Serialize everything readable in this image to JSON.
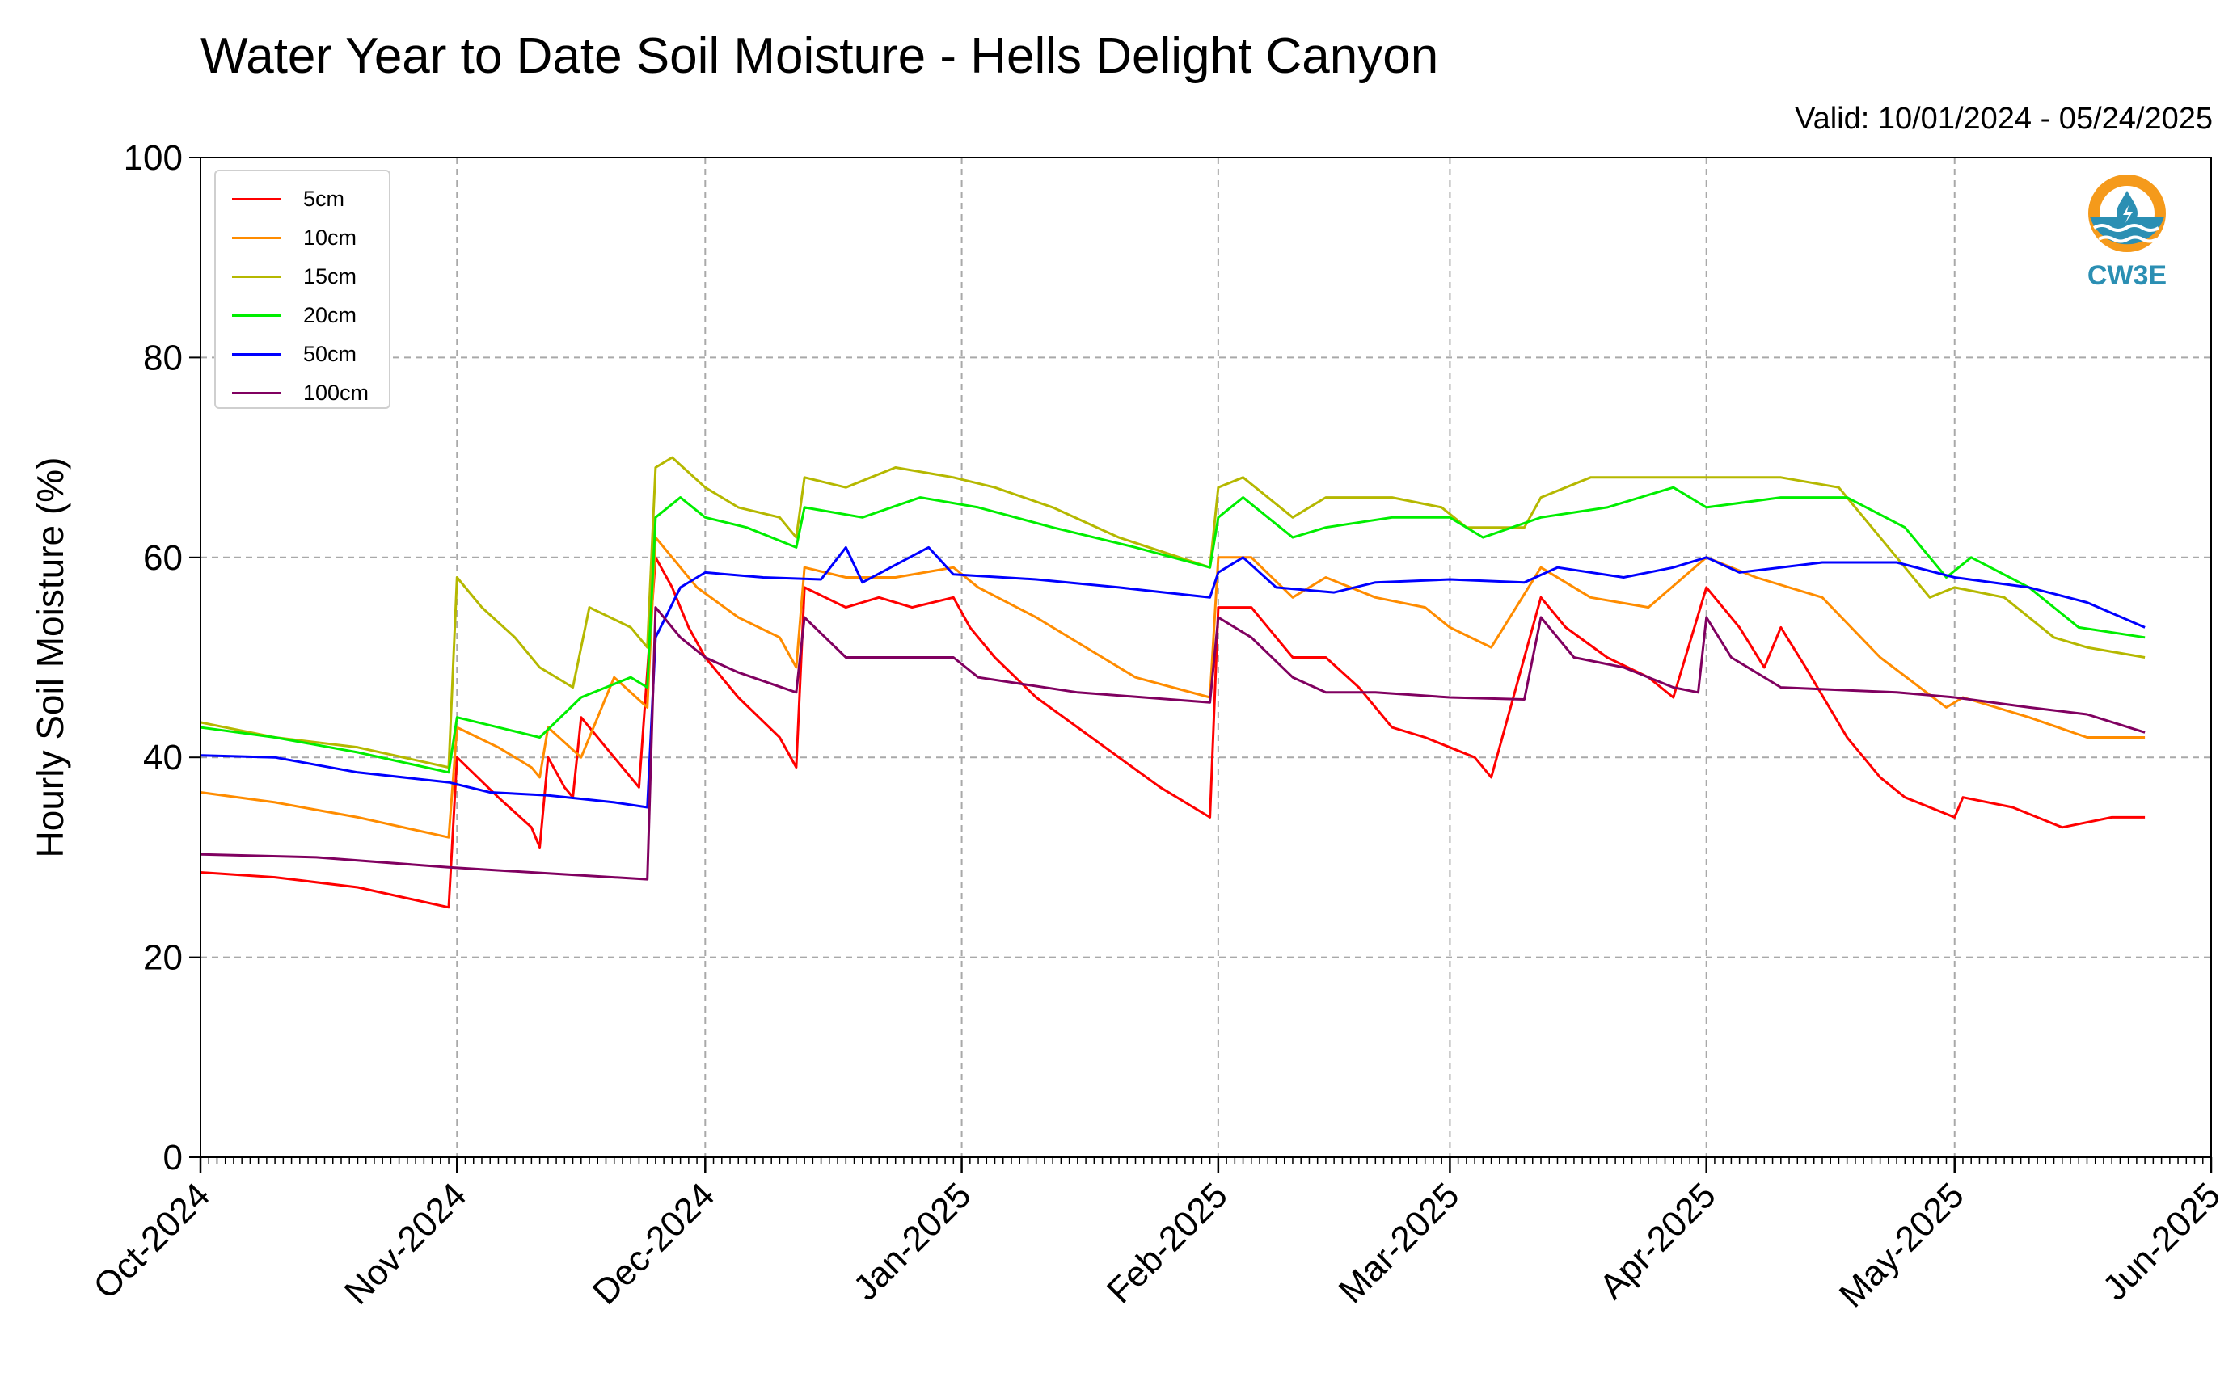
{
  "title": "Water Year to Date Soil Moisture - Hells Delight Canyon",
  "valid_text": "Valid: 10/01/2024 - 05/24/2025",
  "logo_text": "CW3E",
  "colors": {
    "5cm": "#ff0000",
    "10cm": "#ff8c00",
    "15cm": "#b5b800",
    "20cm": "#00ee00",
    "50cm": "#0000ff",
    "100cm": "#800060"
  },
  "chart_data": {
    "type": "line",
    "title": "Water Year to Date Soil Moisture - Hells Delight Canyon",
    "xlabel": "",
    "ylabel": "Hourly Soil Moisture (%)",
    "ylim": [
      0,
      100
    ],
    "yticks": [
      0,
      20,
      40,
      60,
      80,
      100
    ],
    "xlim": [
      "2024-10-01",
      "2025-06-01"
    ],
    "xticks": [
      {
        "date": "2024-10-01",
        "label": "Oct-2024"
      },
      {
        "date": "2024-11-01",
        "label": "Nov-2024"
      },
      {
        "date": "2024-12-01",
        "label": "Dec-2024"
      },
      {
        "date": "2025-01-01",
        "label": "Jan-2025"
      },
      {
        "date": "2025-02-01",
        "label": "Feb-2025"
      },
      {
        "date": "2025-03-01",
        "label": "Mar-2025"
      },
      {
        "date": "2025-04-01",
        "label": "Apr-2025"
      },
      {
        "date": "2025-05-01",
        "label": "May-2025"
      },
      {
        "date": "2025-06-01",
        "label": "Jun-2025"
      }
    ],
    "grid": true,
    "legend_position": "top-left",
    "series": [
      {
        "name": "5cm",
        "color": "#ff0000",
        "points": [
          [
            "2024-10-01",
            28.5
          ],
          [
            "2024-10-10",
            28
          ],
          [
            "2024-10-20",
            27
          ],
          [
            "2024-10-31",
            25
          ],
          [
            "2024-11-01",
            40
          ],
          [
            "2024-11-06",
            36
          ],
          [
            "2024-11-10",
            33
          ],
          [
            "2024-11-11",
            31
          ],
          [
            "2024-11-12",
            40
          ],
          [
            "2024-11-14",
            37
          ],
          [
            "2024-11-15",
            36
          ],
          [
            "2024-11-16",
            44
          ],
          [
            "2024-11-20",
            40
          ],
          [
            "2024-11-23",
            37
          ],
          [
            "2024-11-25",
            60
          ],
          [
            "2024-11-27",
            57
          ],
          [
            "2024-11-29",
            53
          ],
          [
            "2024-12-01",
            50
          ],
          [
            "2024-12-05",
            46
          ],
          [
            "2024-12-10",
            42
          ],
          [
            "2024-12-12",
            39
          ],
          [
            "2024-12-13",
            57
          ],
          [
            "2024-12-18",
            55
          ],
          [
            "2024-12-22",
            56
          ],
          [
            "2024-12-26",
            55
          ],
          [
            "2024-12-31",
            56
          ],
          [
            "2025-01-02",
            53
          ],
          [
            "2025-01-05",
            50
          ],
          [
            "2025-01-10",
            46
          ],
          [
            "2025-01-15",
            43
          ],
          [
            "2025-01-20",
            40
          ],
          [
            "2025-01-25",
            37
          ],
          [
            "2025-01-31",
            34
          ],
          [
            "2025-02-01",
            55
          ],
          [
            "2025-02-05",
            55
          ],
          [
            "2025-02-10",
            50
          ],
          [
            "2025-02-14",
            50
          ],
          [
            "2025-02-18",
            47
          ],
          [
            "2025-02-22",
            43
          ],
          [
            "2025-02-26",
            42
          ],
          [
            "2025-03-01",
            41
          ],
          [
            "2025-03-04",
            40
          ],
          [
            "2025-03-06",
            38
          ],
          [
            "2025-03-12",
            56
          ],
          [
            "2025-03-15",
            53
          ],
          [
            "2025-03-20",
            50
          ],
          [
            "2025-03-25",
            48
          ],
          [
            "2025-03-28",
            46
          ],
          [
            "2025-04-01",
            57
          ],
          [
            "2025-04-05",
            53
          ],
          [
            "2025-04-08",
            49
          ],
          [
            "2025-04-10",
            53
          ],
          [
            "2025-04-13",
            49
          ],
          [
            "2025-04-18",
            42
          ],
          [
            "2025-04-22",
            38
          ],
          [
            "2025-04-25",
            36
          ],
          [
            "2025-05-01",
            34
          ],
          [
            "2025-05-02",
            36
          ],
          [
            "2025-05-08",
            35
          ],
          [
            "2025-05-14",
            33
          ],
          [
            "2025-05-20",
            34
          ],
          [
            "2025-05-24",
            34
          ]
        ]
      },
      {
        "name": "10cm",
        "color": "#ff8c00",
        "points": [
          [
            "2024-10-01",
            36.5
          ],
          [
            "2024-10-10",
            35.5
          ],
          [
            "2024-10-20",
            34
          ],
          [
            "2024-10-31",
            32
          ],
          [
            "2024-11-01",
            43
          ],
          [
            "2024-11-06",
            41
          ],
          [
            "2024-11-10",
            39
          ],
          [
            "2024-11-11",
            38
          ],
          [
            "2024-11-12",
            43
          ],
          [
            "2024-11-16",
            40
          ],
          [
            "2024-11-20",
            48
          ],
          [
            "2024-11-24",
            45
          ],
          [
            "2024-11-25",
            62
          ],
          [
            "2024-11-30",
            57
          ],
          [
            "2024-12-05",
            54
          ],
          [
            "2024-12-10",
            52
          ],
          [
            "2024-12-12",
            49
          ],
          [
            "2024-12-13",
            59
          ],
          [
            "2024-12-18",
            58
          ],
          [
            "2024-12-24",
            58
          ],
          [
            "2024-12-31",
            59
          ],
          [
            "2025-01-03",
            57
          ],
          [
            "2025-01-10",
            54
          ],
          [
            "2025-01-16",
            51
          ],
          [
            "2025-01-22",
            48
          ],
          [
            "2025-01-31",
            46
          ],
          [
            "2025-02-01",
            60
          ],
          [
            "2025-02-05",
            60
          ],
          [
            "2025-02-10",
            56
          ],
          [
            "2025-02-14",
            58
          ],
          [
            "2025-02-20",
            56
          ],
          [
            "2025-02-26",
            55
          ],
          [
            "2025-03-01",
            53
          ],
          [
            "2025-03-06",
            51
          ],
          [
            "2025-03-12",
            59
          ],
          [
            "2025-03-18",
            56
          ],
          [
            "2025-03-25",
            55
          ],
          [
            "2025-04-01",
            60
          ],
          [
            "2025-04-07",
            58
          ],
          [
            "2025-04-15",
            56
          ],
          [
            "2025-04-22",
            50
          ],
          [
            "2025-04-30",
            45
          ],
          [
            "2025-05-02",
            46
          ],
          [
            "2025-05-10",
            44
          ],
          [
            "2025-05-17",
            42
          ],
          [
            "2025-05-24",
            42
          ]
        ]
      },
      {
        "name": "15cm",
        "color": "#b5b800",
        "points": [
          [
            "2024-10-01",
            43.5
          ],
          [
            "2024-10-10",
            42
          ],
          [
            "2024-10-20",
            41
          ],
          [
            "2024-10-31",
            39
          ],
          [
            "2024-11-01",
            58
          ],
          [
            "2024-11-04",
            55
          ],
          [
            "2024-11-08",
            52
          ],
          [
            "2024-11-11",
            49
          ],
          [
            "2024-11-15",
            47
          ],
          [
            "2024-11-17",
            55
          ],
          [
            "2024-11-22",
            53
          ],
          [
            "2024-11-24",
            51
          ],
          [
            "2024-11-25",
            69
          ],
          [
            "2024-11-27",
            70
          ],
          [
            "2024-12-01",
            67
          ],
          [
            "2024-12-05",
            65
          ],
          [
            "2024-12-10",
            64
          ],
          [
            "2024-12-12",
            62
          ],
          [
            "2024-12-13",
            68
          ],
          [
            "2024-12-18",
            67
          ],
          [
            "2024-12-24",
            69
          ],
          [
            "2024-12-31",
            68
          ],
          [
            "2025-01-05",
            67
          ],
          [
            "2025-01-12",
            65
          ],
          [
            "2025-01-20",
            62
          ],
          [
            "2025-01-31",
            59
          ],
          [
            "2025-02-01",
            67
          ],
          [
            "2025-02-04",
            68
          ],
          [
            "2025-02-10",
            64
          ],
          [
            "2025-02-14",
            66
          ],
          [
            "2025-02-22",
            66
          ],
          [
            "2025-02-28",
            65
          ],
          [
            "2025-03-03",
            63
          ],
          [
            "2025-03-10",
            63
          ],
          [
            "2025-03-12",
            66
          ],
          [
            "2025-03-18",
            68
          ],
          [
            "2025-03-25",
            68
          ],
          [
            "2025-04-01",
            68
          ],
          [
            "2025-04-10",
            68
          ],
          [
            "2025-04-17",
            67
          ],
          [
            "2025-04-22",
            62
          ],
          [
            "2025-04-28",
            56
          ],
          [
            "2025-05-01",
            57
          ],
          [
            "2025-05-07",
            56
          ],
          [
            "2025-05-13",
            52
          ],
          [
            "2025-05-17",
            51
          ],
          [
            "2025-05-24",
            50
          ]
        ]
      },
      {
        "name": "20cm",
        "color": "#00ee00",
        "points": [
          [
            "2024-10-01",
            43
          ],
          [
            "2024-10-10",
            42
          ],
          [
            "2024-10-20",
            40.5
          ],
          [
            "2024-10-31",
            38.5
          ],
          [
            "2024-11-01",
            44
          ],
          [
            "2024-11-06",
            43
          ],
          [
            "2024-11-11",
            42
          ],
          [
            "2024-11-16",
            46
          ],
          [
            "2024-11-22",
            48
          ],
          [
            "2024-11-24",
            47
          ],
          [
            "2024-11-25",
            64
          ],
          [
            "2024-11-28",
            66
          ],
          [
            "2024-12-01",
            64
          ],
          [
            "2024-12-06",
            63
          ],
          [
            "2024-12-12",
            61
          ],
          [
            "2024-12-13",
            65
          ],
          [
            "2024-12-20",
            64
          ],
          [
            "2024-12-27",
            66
          ],
          [
            "2025-01-03",
            65
          ],
          [
            "2025-01-12",
            63
          ],
          [
            "2025-01-22",
            61
          ],
          [
            "2025-01-31",
            59
          ],
          [
            "2025-02-01",
            64
          ],
          [
            "2025-02-04",
            66
          ],
          [
            "2025-02-10",
            62
          ],
          [
            "2025-02-14",
            63
          ],
          [
            "2025-02-22",
            64
          ],
          [
            "2025-03-01",
            64
          ],
          [
            "2025-03-05",
            62
          ],
          [
            "2025-03-12",
            64
          ],
          [
            "2025-03-20",
            65
          ],
          [
            "2025-03-28",
            67
          ],
          [
            "2025-04-01",
            65
          ],
          [
            "2025-04-10",
            66
          ],
          [
            "2025-04-18",
            66
          ],
          [
            "2025-04-25",
            63
          ],
          [
            "2025-04-30",
            58
          ],
          [
            "2025-05-03",
            60
          ],
          [
            "2025-05-10",
            57
          ],
          [
            "2025-05-16",
            53
          ],
          [
            "2025-05-24",
            52
          ]
        ]
      },
      {
        "name": "50cm",
        "color": "#0000ff",
        "points": [
          [
            "2024-10-01",
            40.2
          ],
          [
            "2024-10-10",
            40
          ],
          [
            "2024-10-20",
            38.5
          ],
          [
            "2024-10-31",
            37.5
          ],
          [
            "2024-11-05",
            36.5
          ],
          [
            "2024-11-12",
            36.2
          ],
          [
            "2024-11-20",
            35.5
          ],
          [
            "2024-11-24",
            35
          ],
          [
            "2024-11-25",
            52
          ],
          [
            "2024-11-28",
            57
          ],
          [
            "2024-12-01",
            58.5
          ],
          [
            "2024-12-08",
            58
          ],
          [
            "2024-12-15",
            57.8
          ],
          [
            "2024-12-18",
            61
          ],
          [
            "2024-12-20",
            57.5
          ],
          [
            "2024-12-28",
            61
          ],
          [
            "2024-12-31",
            58.3
          ],
          [
            "2025-01-10",
            57.8
          ],
          [
            "2025-01-20",
            57
          ],
          [
            "2025-01-31",
            56
          ],
          [
            "2025-02-01",
            58.5
          ],
          [
            "2025-02-04",
            60
          ],
          [
            "2025-02-08",
            57
          ],
          [
            "2025-02-15",
            56.5
          ],
          [
            "2025-02-20",
            57.5
          ],
          [
            "2025-03-01",
            57.8
          ],
          [
            "2025-03-10",
            57.5
          ],
          [
            "2025-03-14",
            59
          ],
          [
            "2025-03-22",
            58
          ],
          [
            "2025-03-28",
            59
          ],
          [
            "2025-04-01",
            60
          ],
          [
            "2025-04-05",
            58.5
          ],
          [
            "2025-04-15",
            59.5
          ],
          [
            "2025-04-24",
            59.5
          ],
          [
            "2025-05-01",
            58
          ],
          [
            "2025-05-10",
            57
          ],
          [
            "2025-05-17",
            55.5
          ],
          [
            "2025-05-24",
            53
          ]
        ]
      },
      {
        "name": "100cm",
        "color": "#800060",
        "points": [
          [
            "2024-10-01",
            30.3
          ],
          [
            "2024-10-15",
            30
          ],
          [
            "2024-10-31",
            29
          ],
          [
            "2024-11-10",
            28.5
          ],
          [
            "2024-11-24",
            27.8
          ],
          [
            "2024-11-25",
            55
          ],
          [
            "2024-11-28",
            52
          ],
          [
            "2024-12-01",
            50
          ],
          [
            "2024-12-05",
            48.5
          ],
          [
            "2024-12-12",
            46.5
          ],
          [
            "2024-12-13",
            54
          ],
          [
            "2024-12-18",
            50
          ],
          [
            "2024-12-24",
            50
          ],
          [
            "2024-12-31",
            50
          ],
          [
            "2025-01-03",
            48
          ],
          [
            "2025-01-15",
            46.5
          ],
          [
            "2025-01-31",
            45.5
          ],
          [
            "2025-02-01",
            54
          ],
          [
            "2025-02-05",
            52
          ],
          [
            "2025-02-10",
            48
          ],
          [
            "2025-02-14",
            46.5
          ],
          [
            "2025-02-20",
            46.5
          ],
          [
            "2025-03-01",
            46
          ],
          [
            "2025-03-10",
            45.8
          ],
          [
            "2025-03-12",
            54
          ],
          [
            "2025-03-16",
            50
          ],
          [
            "2025-03-22",
            49
          ],
          [
            "2025-03-28",
            47
          ],
          [
            "2025-03-31",
            46.5
          ],
          [
            "2025-04-01",
            54
          ],
          [
            "2025-04-04",
            50
          ],
          [
            "2025-04-10",
            47
          ],
          [
            "2025-04-24",
            46.5
          ],
          [
            "2025-05-01",
            46
          ],
          [
            "2025-05-10",
            45
          ],
          [
            "2025-05-17",
            44.3
          ],
          [
            "2025-05-24",
            42.5
          ]
        ]
      }
    ]
  }
}
